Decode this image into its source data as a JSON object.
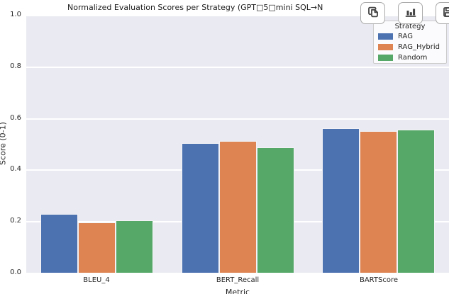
{
  "chart_data": {
    "type": "bar",
    "title": "Normalized Evaluation Scores per Strategy (GPT□5□mini SQL→N",
    "xlabel": "Metric",
    "ylabel": "Score (0-1)",
    "categories": [
      "BLEU_4",
      "BERT_Recall",
      "BARTScore"
    ],
    "series": [
      {
        "name": "RAG",
        "color": "#4C72B0",
        "values": [
          0.227,
          0.504,
          0.56
        ]
      },
      {
        "name": "RAG_Hybrid",
        "color": "#DD8452",
        "values": [
          0.195,
          0.511,
          0.549
        ]
      },
      {
        "name": "Random",
        "color": "#55A868",
        "values": [
          0.204,
          0.486,
          0.556
        ]
      }
    ],
    "ylim": [
      0,
      1.0
    ],
    "yticks": [
      "0.0",
      "0.2",
      "0.4",
      "0.6",
      "0.8",
      "1.0"
    ],
    "grid": "horizontal-white-on-lavender",
    "legend_title": "Strategy",
    "legend_position": "upper right",
    "plot_bg_color": "#EAEAF2"
  },
  "toolbar": {
    "buttons": [
      {
        "icon": "copy-icon"
      },
      {
        "icon": "bar-chart-icon"
      },
      {
        "icon": "save-icon"
      }
    ]
  }
}
